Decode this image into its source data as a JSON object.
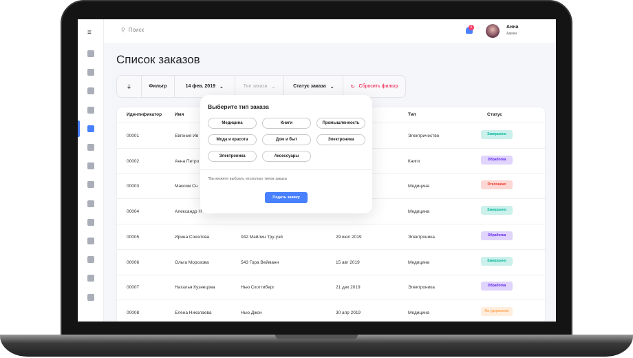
{
  "header": {
    "search_placeholder": "Поиск",
    "notifications_count": "6",
    "user_name": "Анна",
    "user_role": "Админ"
  },
  "page_title": "Список заказов",
  "filter": {
    "label": "Фильтр",
    "date": "14 фев. 2019",
    "type_placeholder": "Тип заказа",
    "status": "Статус заказа",
    "reset": "Сбросить фильтр"
  },
  "table": {
    "headers": {
      "id": "Идентификатор",
      "name": "Имя",
      "type": "Тип",
      "status": "Статус"
    },
    "rows": [
      {
        "id": "00001",
        "name": "Евгения Ив",
        "address": "",
        "date": "",
        "type": "Электричество",
        "status": "Завершено",
        "kind": "done"
      },
      {
        "id": "00002",
        "name": "Анна Петро",
        "address": "",
        "date": "",
        "type": "Книги",
        "status": "Обработка",
        "kind": "proc"
      },
      {
        "id": "00003",
        "name": "Максим Сн",
        "address": "",
        "date": "",
        "type": "Медицина",
        "status": "Отклонено",
        "kind": "rej"
      },
      {
        "id": "00004",
        "name": "Александр Н",
        "address": "",
        "date": "",
        "type": "Медицина",
        "status": "Завершено",
        "kind": "done"
      },
      {
        "id": "00005",
        "name": "Ирина Соколова",
        "address": "042 Майлин Тру-уэй",
        "date": "29 июл 2019",
        "type": "Электроника",
        "status": "Обработка",
        "kind": "proc"
      },
      {
        "id": "00006",
        "name": "Ольга Морозова",
        "address": "543 Гора Вейманн",
        "date": "15 авг 2019",
        "type": "Медицина",
        "status": "Завершено",
        "kind": "done"
      },
      {
        "id": "00007",
        "name": "Наталья Кузнецова",
        "address": "Нью Скоттиберг",
        "date": "21 дек 2019",
        "type": "Электроника",
        "status": "Обработка",
        "kind": "proc"
      },
      {
        "id": "00008",
        "name": "Елена Николаева",
        "address": "Нью Джон",
        "date": "30 апр 2019",
        "type": "Медицина",
        "status": "На удержании",
        "kind": "hold"
      }
    ]
  },
  "status_colors": {
    "done": [
      "#ccf0eb",
      "#00b69b"
    ],
    "proc": [
      "#e0d4fc",
      "#6226ef"
    ],
    "rej": [
      "#fcd7d4",
      "#ef3826"
    ],
    "hold": [
      "#ffeddd",
      "#ffa756"
    ]
  },
  "popup": {
    "title": "Выберите тип заказа",
    "options": [
      "Медицина",
      "Книги",
      "Промышленность",
      "Мода и красота",
      "Дом и быт",
      "Электроника",
      "Электроника",
      "Аксессуары"
    ],
    "note": "*Вы можете выбрать несколько типов заказа",
    "submit": "Подать заявку"
  },
  "colors": {
    "accent": "#4880ff",
    "danger": "#ea0234"
  }
}
